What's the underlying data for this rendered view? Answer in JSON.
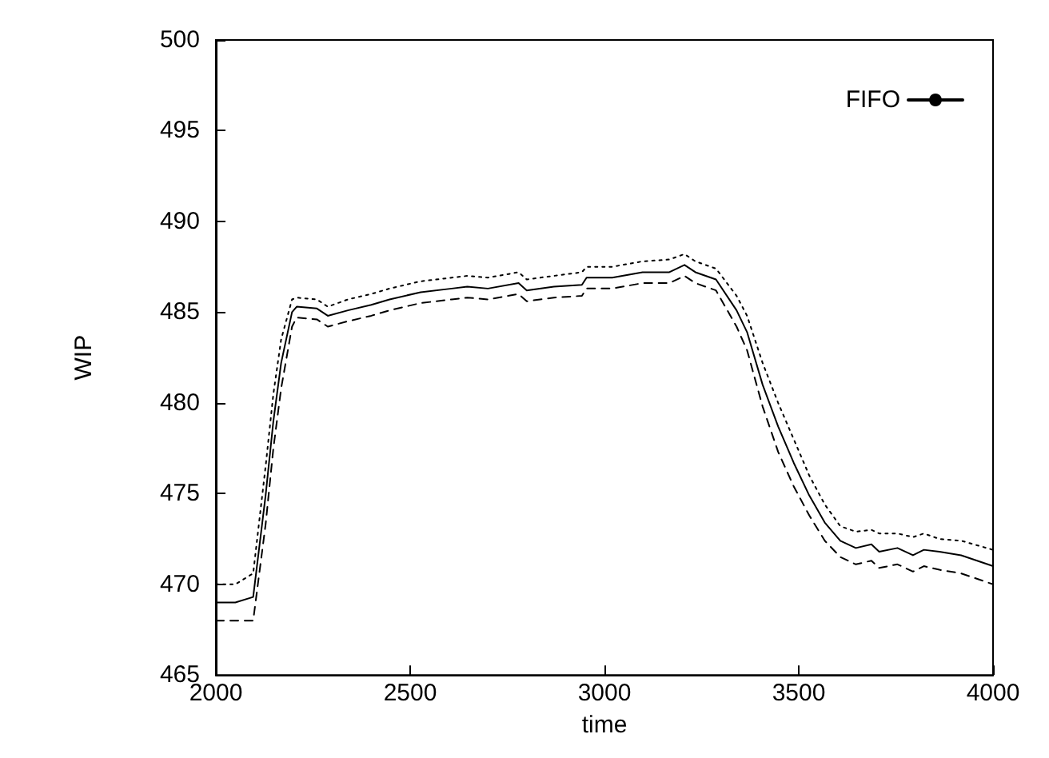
{
  "chart_data": {
    "type": "line",
    "xlabel": "time",
    "ylabel": "WIP",
    "x": [
      2000,
      2050,
      2096,
      2128,
      2148,
      2168,
      2196,
      2208,
      2260,
      2288,
      2340,
      2400,
      2447,
      2527,
      2607,
      2647,
      2700,
      2779,
      2800,
      2870,
      2942,
      2954,
      3020,
      3098,
      3167,
      3206,
      3234,
      3287,
      3340,
      3367,
      3407,
      3447,
      3487,
      3527,
      3567,
      3607,
      3647,
      3687,
      3707,
      3754,
      3794,
      3822,
      3862,
      3918,
      4000
    ],
    "series": [
      {
        "name": "FIFO",
        "color": "#000000",
        "line_style": "solid",
        "values": [
          469.0,
          469.0,
          469.3,
          474.9,
          479.0,
          482.2,
          485.0,
          485.3,
          485.2,
          484.8,
          485.1,
          485.4,
          485.7,
          486.1,
          486.3,
          486.4,
          486.3,
          486.6,
          486.2,
          486.4,
          486.5,
          486.9,
          486.9,
          487.2,
          487.2,
          487.6,
          487.2,
          486.8,
          485.1,
          483.9,
          481.0,
          478.7,
          476.7,
          474.9,
          473.4,
          472.4,
          472.0,
          472.2,
          471.8,
          472.0,
          471.6,
          471.9,
          471.8,
          471.6,
          471.0
        ]
      },
      {
        "color": "#000000",
        "line_style": "dotted",
        "values": [
          470.0,
          470.0,
          470.6,
          476.5,
          480.5,
          483.5,
          485.7,
          485.8,
          485.7,
          485.3,
          485.7,
          486.0,
          486.3,
          486.7,
          486.9,
          487.0,
          486.9,
          487.2,
          486.8,
          487.0,
          487.2,
          487.5,
          487.5,
          487.8,
          487.9,
          488.2,
          487.8,
          487.4,
          485.9,
          484.8,
          482.2,
          480.0,
          478.0,
          476.0,
          474.4,
          473.2,
          472.9,
          473.0,
          472.8,
          472.8,
          472.6,
          472.8,
          472.5,
          472.4,
          471.9
        ]
      },
      {
        "color": "#000000",
        "line_style": "dashed",
        "values": [
          468.0,
          468.0,
          468.0,
          473.3,
          477.5,
          480.8,
          484.2,
          484.7,
          484.6,
          484.2,
          484.5,
          484.8,
          485.1,
          485.5,
          485.7,
          485.8,
          485.7,
          486.0,
          485.6,
          485.8,
          485.9,
          486.3,
          486.3,
          486.6,
          486.6,
          487.0,
          486.6,
          486.2,
          484.2,
          482.9,
          479.8,
          477.3,
          475.4,
          473.8,
          472.4,
          471.5,
          471.1,
          471.3,
          470.9,
          471.1,
          470.7,
          471.0,
          470.8,
          470.6,
          470.0
        ]
      }
    ],
    "xlim": [
      2000,
      4000
    ],
    "xticks": [
      2000,
      2500,
      3000,
      3500,
      4000
    ],
    "ylim": [
      465,
      500
    ],
    "yticks": [
      465,
      470,
      475,
      480,
      485,
      490,
      495,
      500
    ],
    "grid": false,
    "legend": "top right",
    "marker": "none"
  }
}
